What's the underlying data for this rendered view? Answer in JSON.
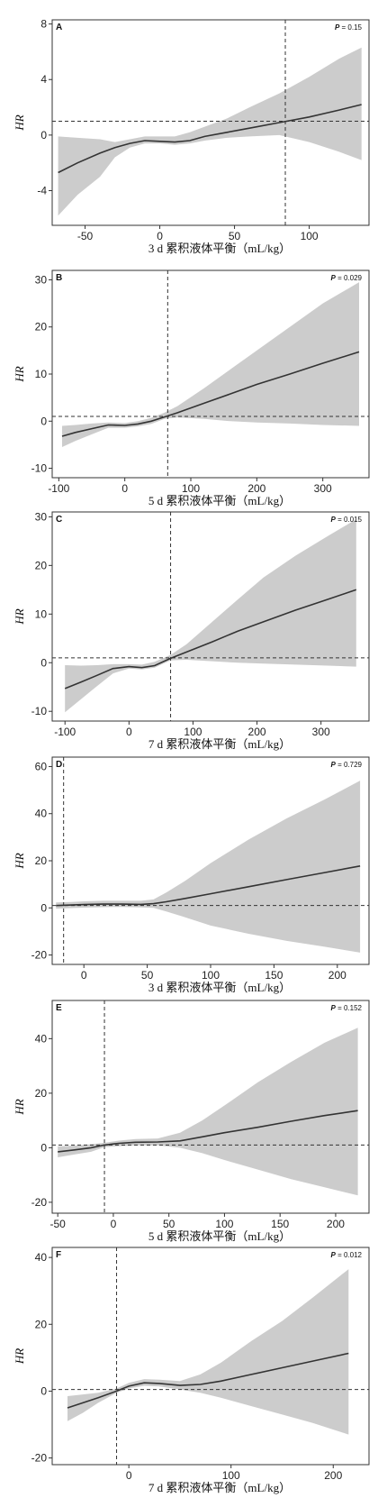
{
  "chart_data": [
    {
      "type": "line",
      "panel": "A",
      "p_label": "P",
      "p_value": "= 0.15",
      "xlabel": "3 d 累积液体平衡（mL/kg）",
      "ylabel": "HR",
      "xlim": [
        -72,
        140
      ],
      "ylim": [
        -6.5,
        8.3
      ],
      "x_ticks": [
        -50,
        0,
        50,
        100
      ],
      "y_ticks": [
        -4,
        0,
        4,
        8
      ],
      "vline_x": 84,
      "hline_y": 1,
      "series": [
        {
          "x": [
            -68,
            -55,
            -40,
            -30,
            -20,
            -10,
            0,
            10,
            20,
            30,
            45,
            60,
            80,
            100,
            120,
            135
          ],
          "y": [
            -2.7,
            -2.0,
            -1.3,
            -0.9,
            -0.6,
            -0.4,
            -0.45,
            -0.5,
            -0.4,
            -0.1,
            0.2,
            0.5,
            0.9,
            1.3,
            1.8,
            2.2
          ],
          "lower": [
            -5.8,
            -4.3,
            -3.0,
            -1.6,
            -0.9,
            -0.6,
            -0.6,
            -0.7,
            -0.6,
            -0.4,
            -0.2,
            -0.1,
            0.0,
            -0.5,
            -1.2,
            -1.8
          ],
          "upper": [
            -0.1,
            -0.2,
            -0.3,
            -0.5,
            -0.3,
            -0.1,
            -0.1,
            -0.1,
            0.2,
            0.6,
            1.2,
            2.0,
            3.0,
            4.2,
            5.5,
            6.3
          ]
        }
      ]
    },
    {
      "type": "line",
      "panel": "B",
      "p_label": "P",
      "p_value": "= 0.029",
      "xlabel": "5 d 累积液体平衡（mL/kg）",
      "ylabel": "HR",
      "xlim": [
        -110,
        370
      ],
      "ylim": [
        -12,
        32
      ],
      "x_ticks": [
        -100,
        0,
        100,
        200,
        300
      ],
      "y_ticks": [
        -10,
        0,
        10,
        20,
        30
      ],
      "vline_x": 65,
      "hline_y": 1,
      "series": [
        {
          "x": [
            -95,
            -75,
            -50,
            -25,
            0,
            20,
            40,
            60,
            80,
            120,
            160,
            200,
            250,
            300,
            355
          ],
          "y": [
            -3.2,
            -2.4,
            -1.6,
            -0.8,
            -0.9,
            -0.6,
            0.0,
            0.9,
            1.8,
            3.8,
            5.8,
            7.8,
            10.0,
            12.3,
            14.7
          ],
          "lower": [
            -5.5,
            -4.2,
            -2.8,
            -1.4,
            -1.4,
            -1.1,
            -0.6,
            0.5,
            0.8,
            0.5,
            0.0,
            -0.3,
            -0.5,
            -0.8,
            -1.0
          ],
          "upper": [
            -1.0,
            -0.8,
            -0.5,
            -0.3,
            -0.4,
            0.0,
            0.7,
            1.8,
            3.2,
            7.0,
            11.0,
            15.0,
            20.0,
            25.0,
            29.5
          ]
        }
      ]
    },
    {
      "type": "line",
      "panel": "C",
      "p_label": "P",
      "p_value": "= 0.015",
      "xlabel": "7 d 累积液体平衡（mL/kg）",
      "ylabel": "HR",
      "xlim": [
        -120,
        375
      ],
      "ylim": [
        -12,
        31
      ],
      "x_ticks": [
        -100,
        0,
        100,
        200,
        300
      ],
      "y_ticks": [
        -10,
        0,
        10,
        20,
        30
      ],
      "vline_x": 65,
      "hline_y": 1,
      "series": [
        {
          "x": [
            -100,
            -75,
            -50,
            -25,
            0,
            20,
            40,
            65,
            90,
            130,
            170,
            210,
            260,
            310,
            355
          ],
          "y": [
            -5.3,
            -4.0,
            -2.6,
            -1.2,
            -0.8,
            -1.0,
            -0.6,
            0.9,
            2.2,
            4.3,
            6.5,
            8.4,
            10.8,
            13.0,
            15.0
          ],
          "lower": [
            -10.2,
            -7.5,
            -4.8,
            -2.2,
            -1.2,
            -1.4,
            -1.0,
            0.5,
            0.6,
            0.3,
            0.0,
            -0.2,
            -0.4,
            -0.6,
            -0.8
          ],
          "upper": [
            -0.5,
            -0.6,
            -0.5,
            -0.3,
            -0.3,
            -0.4,
            0.2,
            1.6,
            3.8,
            8.4,
            13.0,
            17.5,
            22.0,
            26.0,
            29.5
          ]
        }
      ]
    },
    {
      "type": "line",
      "panel": "D",
      "p_label": "P",
      "p_value": "= 0.729",
      "xlabel": "3 d 累积液体平衡（mL/kg）",
      "ylabel": "HR",
      "xlim": [
        -25,
        225
      ],
      "ylim": [
        -24,
        64
      ],
      "x_ticks": [
        0,
        50,
        100,
        150,
        200
      ],
      "y_ticks": [
        -20,
        0,
        20,
        40,
        60
      ],
      "vline_x": -16,
      "hline_y": 1,
      "series": [
        {
          "x": [
            -22,
            -10,
            0,
            15,
            30,
            45,
            55,
            65,
            80,
            100,
            130,
            160,
            190,
            218
          ],
          "y": [
            1.0,
            1.2,
            1.4,
            1.6,
            1.6,
            1.5,
            1.8,
            2.6,
            4.0,
            6.0,
            9.0,
            12.0,
            15.0,
            17.8
          ],
          "lower": [
            -0.3,
            -0.1,
            0.1,
            0.3,
            0.4,
            0.2,
            0.0,
            -1.5,
            -4.0,
            -7.5,
            -11.0,
            -14.0,
            -16.5,
            -19.0
          ],
          "upper": [
            2.3,
            2.5,
            2.8,
            3.0,
            3.0,
            3.0,
            3.6,
            6.5,
            11.5,
            19.0,
            29.0,
            38.0,
            46.0,
            54.0
          ]
        }
      ]
    },
    {
      "type": "line",
      "panel": "E",
      "p_label": "P",
      "p_value": "= 0.152",
      "xlabel": "5 d 累积液体平衡（mL/kg）",
      "ylabel": "HR",
      "xlim": [
        -55,
        230
      ],
      "ylim": [
        -24,
        54
      ],
      "x_ticks": [
        -50,
        0,
        50,
        100,
        150,
        200
      ],
      "y_ticks": [
        -20,
        0,
        20,
        40
      ],
      "vline_x": -8,
      "hline_y": 1,
      "series": [
        {
          "x": [
            -50,
            -35,
            -20,
            -8,
            5,
            20,
            40,
            60,
            80,
            100,
            130,
            160,
            190,
            220
          ],
          "y": [
            -1.5,
            -0.8,
            0.0,
            1.0,
            1.6,
            2.0,
            2.1,
            2.5,
            4.0,
            5.5,
            7.5,
            9.7,
            11.8,
            13.6
          ],
          "lower": [
            -3.5,
            -2.5,
            -1.5,
            0.2,
            0.6,
            0.9,
            0.9,
            0.0,
            -2.0,
            -4.5,
            -8.0,
            -11.5,
            -14.5,
            -17.5
          ],
          "upper": [
            0.5,
            0.8,
            1.3,
            1.8,
            2.6,
            3.2,
            3.4,
            5.5,
            10.0,
            15.5,
            24.0,
            31.5,
            38.5,
            44.0
          ]
        }
      ]
    },
    {
      "type": "line",
      "panel": "F",
      "p_label": "P",
      "p_value": "= 0.012",
      "xlabel": "7 d 累积液体平衡（mL/kg）",
      "ylabel": "HR",
      "xlim": [
        -75,
        235
      ],
      "ylim": [
        -22,
        43
      ],
      "x_ticks": [
        0,
        100,
        200
      ],
      "y_ticks": [
        -20,
        0,
        20,
        40
      ],
      "vline_x": -12,
      "hline_y": 0.5,
      "series": [
        {
          "x": [
            -60,
            -45,
            -30,
            -12,
            0,
            15,
            30,
            50,
            70,
            90,
            120,
            150,
            180,
            215
          ],
          "y": [
            -5.0,
            -3.5,
            -2.0,
            0.0,
            1.5,
            2.5,
            2.3,
            1.7,
            2.0,
            3.0,
            5.0,
            7.0,
            9.0,
            11.3
          ],
          "lower": [
            -9.0,
            -6.5,
            -3.5,
            -0.5,
            0.8,
            1.6,
            1.4,
            0.5,
            -0.5,
            -2.0,
            -4.5,
            -7.0,
            -9.5,
            -13.0
          ],
          "upper": [
            -1.5,
            -1.0,
            -0.5,
            0.8,
            2.5,
            3.6,
            3.4,
            3.0,
            5.0,
            8.5,
            15.0,
            21.0,
            28.0,
            36.5
          ]
        }
      ]
    }
  ]
}
